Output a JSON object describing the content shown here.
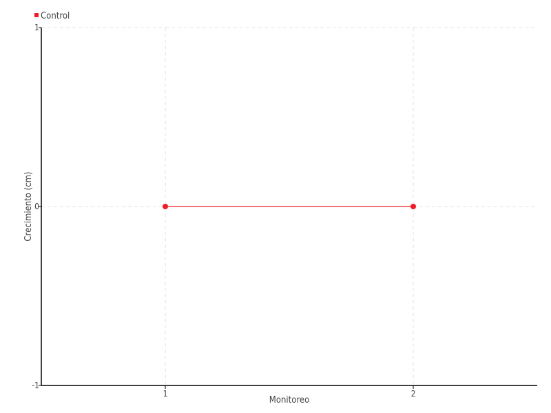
{
  "chart_data": {
    "type": "line",
    "title": "",
    "xlabel": "Monitoreo",
    "ylabel": "Crecimiento (cm)",
    "xlim": [
      0.5,
      2.5
    ],
    "ylim": [
      -1,
      1
    ],
    "x_ticks": [
      "1",
      "2"
    ],
    "y_ticks": [
      "-1",
      "0",
      "1"
    ],
    "grid": true,
    "legend_position": "top-left",
    "series": [
      {
        "name": "Control",
        "color": "#ee1c25",
        "x": [
          1,
          2
        ],
        "y": [
          0,
          0
        ]
      }
    ]
  }
}
